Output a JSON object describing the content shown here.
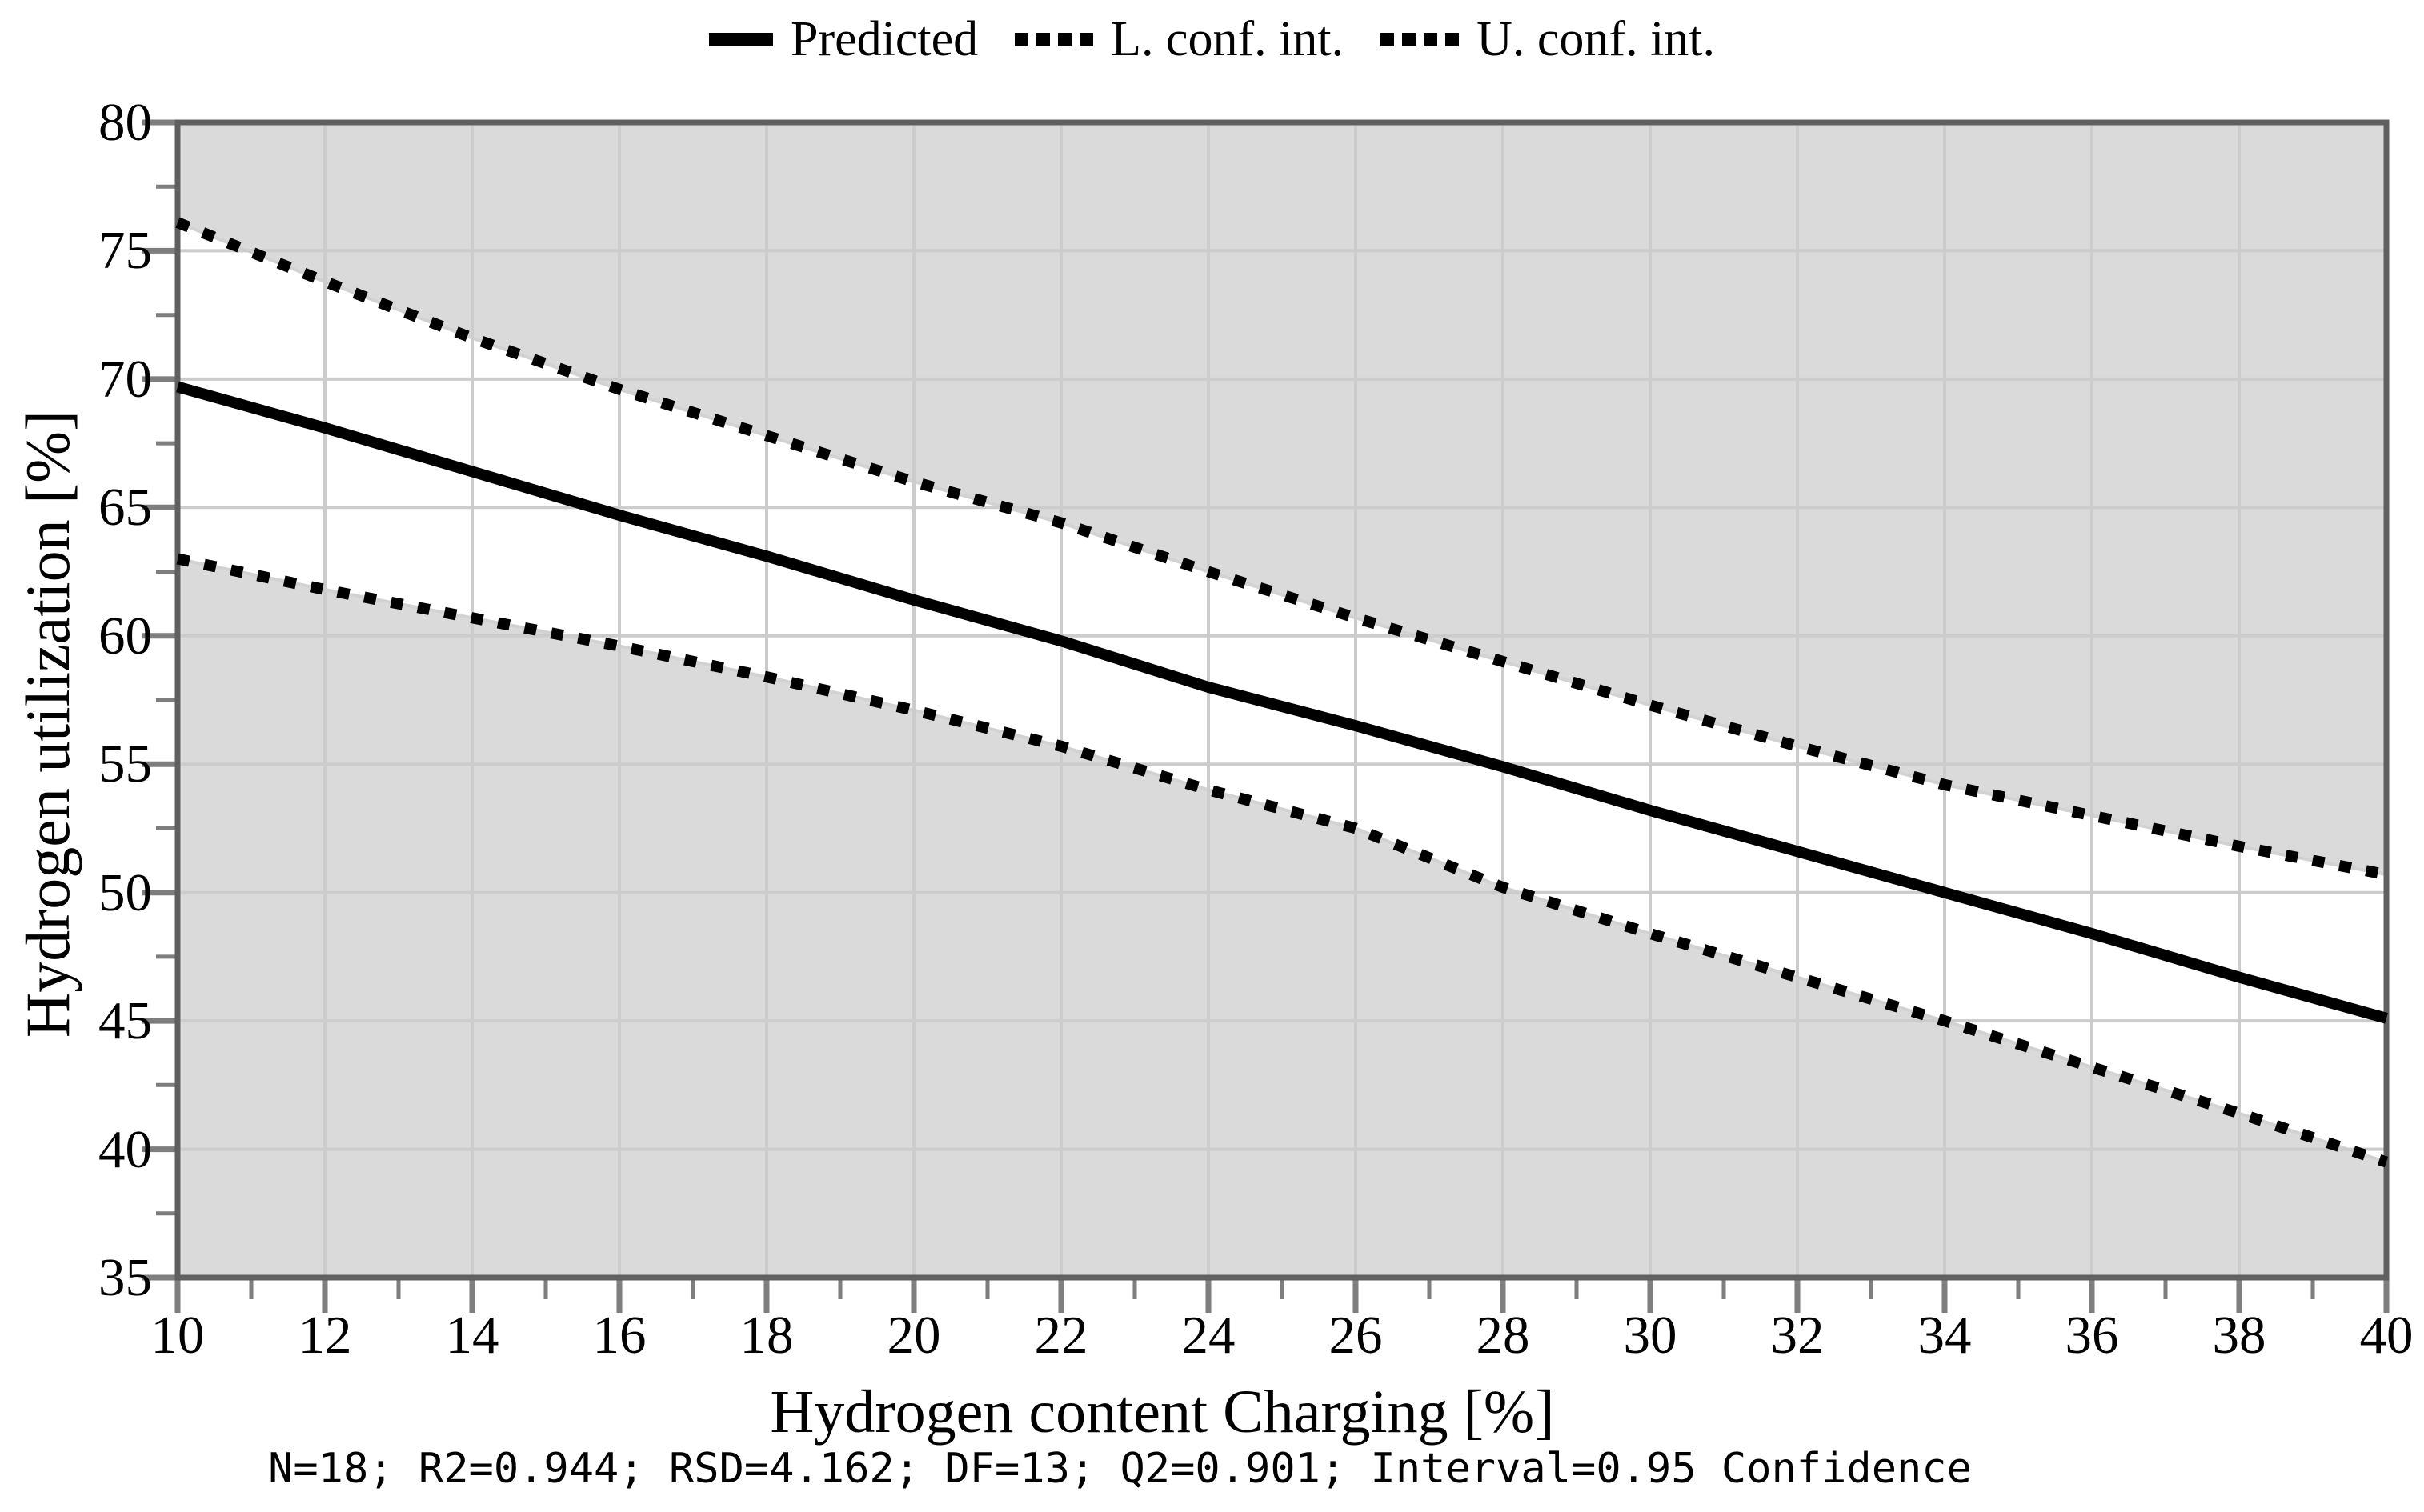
{
  "figure": {
    "background": "#ffffff",
    "plot_background": "#dadada",
    "band_color": "#ffffff",
    "band_edge_color": "#d2d2d2",
    "gridline_color": "#cccccc",
    "border_color": "#606060",
    "tick_color": "#7e7e7e",
    "line_color": "#000000"
  },
  "legend": {
    "items": [
      {
        "label": "Predicted",
        "swatch": "solid-line-swatch"
      },
      {
        "label": "L. conf. int.",
        "swatch": "dotted-line-swatch"
      },
      {
        "label": "U. conf. int.",
        "swatch": "dotted-line-swatch"
      }
    ]
  },
  "axes": {
    "x": {
      "label": "Hydrogen content Charging [%]",
      "min": 10,
      "max": 40,
      "major_step": 2,
      "minor_step": 1
    },
    "y": {
      "label": "Hydrogen utilization [%]",
      "min": 35,
      "max": 80,
      "major_step": 5,
      "minor_step": 2.5
    }
  },
  "footnote": "N=18; R2=0.944; RSD=4.162; DF=13; Q2=0.901; Interval=0.95 Confidence",
  "chart_data": {
    "type": "line",
    "title": "",
    "xlabel": "Hydrogen content Charging [%]",
    "ylabel": "Hydrogen utilization [%]",
    "xlim": [
      10,
      40
    ],
    "ylim": [
      35,
      80
    ],
    "grid": "major",
    "legend_position": "top",
    "x_ticks": [
      10,
      12,
      14,
      16,
      18,
      20,
      22,
      24,
      26,
      28,
      30,
      32,
      34,
      36,
      38,
      40
    ],
    "y_ticks": [
      80,
      75,
      70,
      65,
      60,
      55,
      50,
      45,
      40,
      35
    ],
    "x": [
      10,
      12,
      14,
      16,
      18,
      20,
      22,
      24,
      26,
      28,
      30,
      32,
      34,
      36,
      38,
      40
    ],
    "series": [
      {
        "name": "Predicted",
        "style": "solid",
        "values": [
          69.7,
          68.1,
          66.4,
          64.7,
          63.1,
          61.4,
          59.8,
          58.0,
          56.5,
          54.9,
          53.2,
          51.6,
          50.0,
          48.4,
          46.7,
          45.1
        ]
      },
      {
        "name": "L. conf. int.",
        "style": "dotted",
        "values": [
          63.0,
          61.8,
          60.7,
          59.6,
          58.4,
          57.1,
          55.7,
          54.0,
          52.5,
          50.2,
          48.4,
          46.7,
          45.0,
          43.2,
          41.4,
          39.5
        ]
      },
      {
        "name": "U. conf. int.",
        "style": "dotted",
        "values": [
          76.1,
          73.8,
          71.6,
          69.6,
          67.8,
          66.0,
          64.4,
          62.5,
          60.7,
          59.0,
          57.3,
          55.7,
          54.2,
          53.0,
          51.8,
          50.7
        ]
      }
    ],
    "stats": {
      "N": 18,
      "R2": 0.944,
      "RSD": 4.162,
      "DF": 13,
      "Q2": 0.901,
      "interval": 0.95,
      "interval_type": "Confidence"
    }
  }
}
